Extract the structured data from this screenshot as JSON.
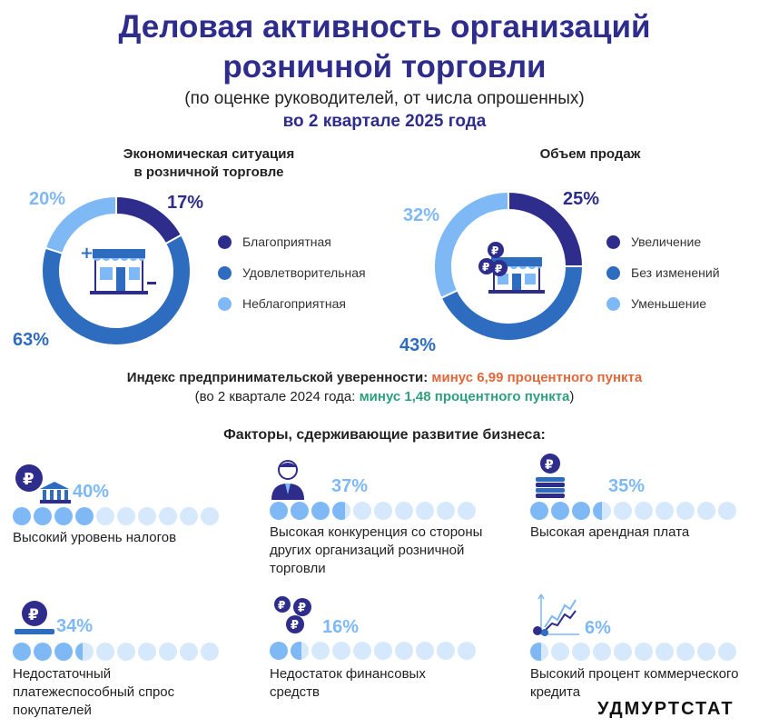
{
  "header": {
    "title_line1": "Деловая активность организаций",
    "title_line2": "розничной торговли",
    "subtitle": "(по оценке руководителей, от числа опрошенных)",
    "period": "во 2 квартале 2025 года"
  },
  "colors": {
    "dark": "#2e2d8c",
    "mid": "#2e6cc0",
    "light": "#7fb9f5",
    "pale": "#d6e8fb",
    "orange": "#e0683a",
    "teal": "#2fa07c"
  },
  "chart_data": [
    {
      "type": "pie",
      "title_line1": "Экономическая ситуация",
      "title_line2": "в розничной торговле",
      "slices": [
        {
          "label": "Благоприятная",
          "value": 17,
          "display": "17%",
          "color": "#2e2d8c"
        },
        {
          "label": "Удовлетворительная",
          "value": 63,
          "display": "63%",
          "color": "#2e6cc0"
        },
        {
          "label": "Неблагоприятная",
          "value": 20,
          "display": "20%",
          "color": "#7fb9f5"
        }
      ],
      "icon": "shop-plus-minus-icon"
    },
    {
      "type": "pie",
      "title_line1": "Объем продаж",
      "title_line2": "",
      "slices": [
        {
          "label": "Увеличение",
          "value": 25,
          "display": "25%",
          "color": "#2e2d8c"
        },
        {
          "label": "Без изменений",
          "value": 43,
          "display": "43%",
          "color": "#2e6cc0"
        },
        {
          "label": "Уменьшение",
          "value": 32,
          "display": "32%",
          "color": "#7fb9f5"
        }
      ],
      "icon": "shop-coins-icon"
    }
  ],
  "index": {
    "label": "Индекс предпринимательской уверенности:",
    "value": "минус 6,99 процентного пункта",
    "prev_open": "(во 2 квартале 2024 года:",
    "prev_value": "минус 1,48 процентного пункта",
    "prev_close": ")"
  },
  "factors": {
    "title": "Факторы, сдерживающие развитие бизнеса:",
    "items": [
      {
        "pct": 40,
        "display": "40%",
        "label": [
          "Высокий уровень налогов"
        ],
        "icon": "ruble-bank-icon"
      },
      {
        "pct": 37,
        "display": "37%",
        "label": [
          "Высокая конкуренция со стороны",
          "других организаций розничной",
          "торговли"
        ],
        "icon": "businessman-icon"
      },
      {
        "pct": 35,
        "display": "35%",
        "label": [
          "Высокая арендная плата"
        ],
        "icon": "ruble-coin-stack-icon"
      },
      {
        "pct": 34,
        "display": "34%",
        "label": [
          "Недостаточный",
          "платежеспособный спрос",
          "покупателей"
        ],
        "icon": "ruble-coin-on-plate-icon"
      },
      {
        "pct": 16,
        "display": "16%",
        "label": [
          "Недостаток финансовых",
          "средств"
        ],
        "icon": "ruble-coins-icon"
      },
      {
        "pct": 6,
        "display": "6%",
        "label": [
          "Высокий процент коммерческого",
          "кредита"
        ],
        "icon": "growth-chart-icon"
      }
    ]
  },
  "brand": "УДМУРТСТАТ"
}
